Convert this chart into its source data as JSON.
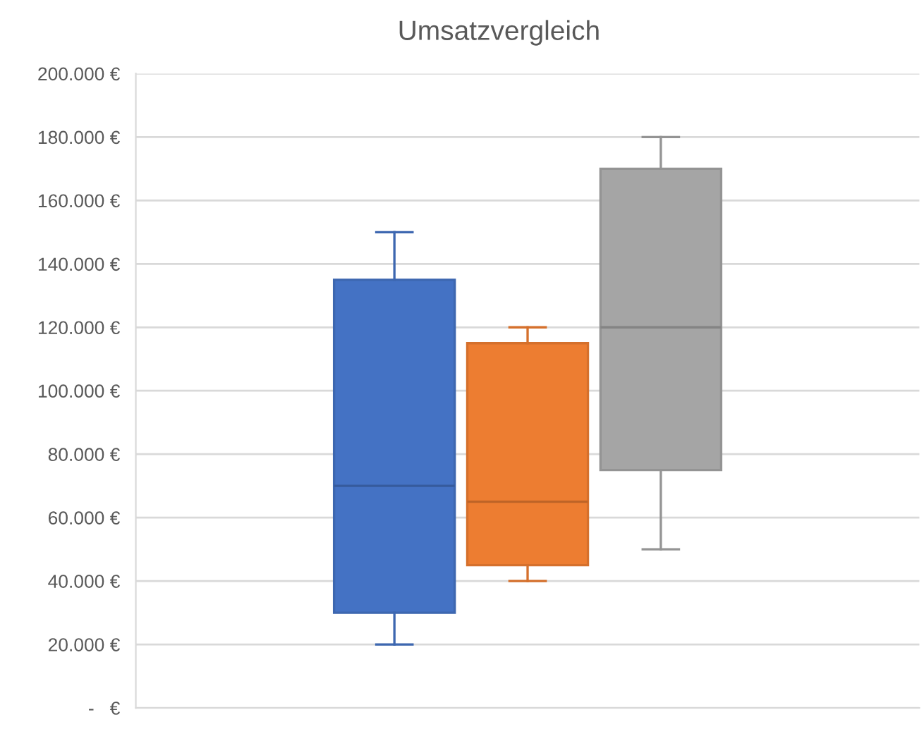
{
  "chart_data": {
    "type": "box",
    "title": "Umsatzvergleich",
    "categories": [
      null
    ],
    "series": [
      {
        "color": "#4472c4",
        "boxes": [
          {
            "low": 20000,
            "q1": 30000,
            "median": 70000,
            "q3": 135000,
            "high": 150000
          }
        ]
      },
      {
        "color": "#ed7d31",
        "boxes": [
          {
            "low": 40000,
            "q1": 45000,
            "median": 65000,
            "q3": 115000,
            "high": 120000
          }
        ]
      },
      {
        "color": "#a5a5a5",
        "boxes": [
          {
            "low": 50000,
            "q1": 75000,
            "median": 120000,
            "q3": 170000,
            "high": 180000
          }
        ]
      }
    ],
    "ylim": [
      0,
      200000
    ],
    "yticks": [
      {
        "value": 0,
        "label": "-   €"
      },
      {
        "value": 20000,
        "label": "20.000 €"
      },
      {
        "value": 40000,
        "label": "40.000 €"
      },
      {
        "value": 60000,
        "label": "60.000 €"
      },
      {
        "value": 80000,
        "label": "80.000 €"
      },
      {
        "value": 100000,
        "label": "100.000 €"
      },
      {
        "value": 120000,
        "label": "120.000 €"
      },
      {
        "value": 140000,
        "label": "140.000 €"
      },
      {
        "value": 160000,
        "label": "160.000 €"
      },
      {
        "value": 180000,
        "label": "180.000 €"
      },
      {
        "value": 200000,
        "label": "200.000 €"
      }
    ],
    "grid": "y"
  }
}
